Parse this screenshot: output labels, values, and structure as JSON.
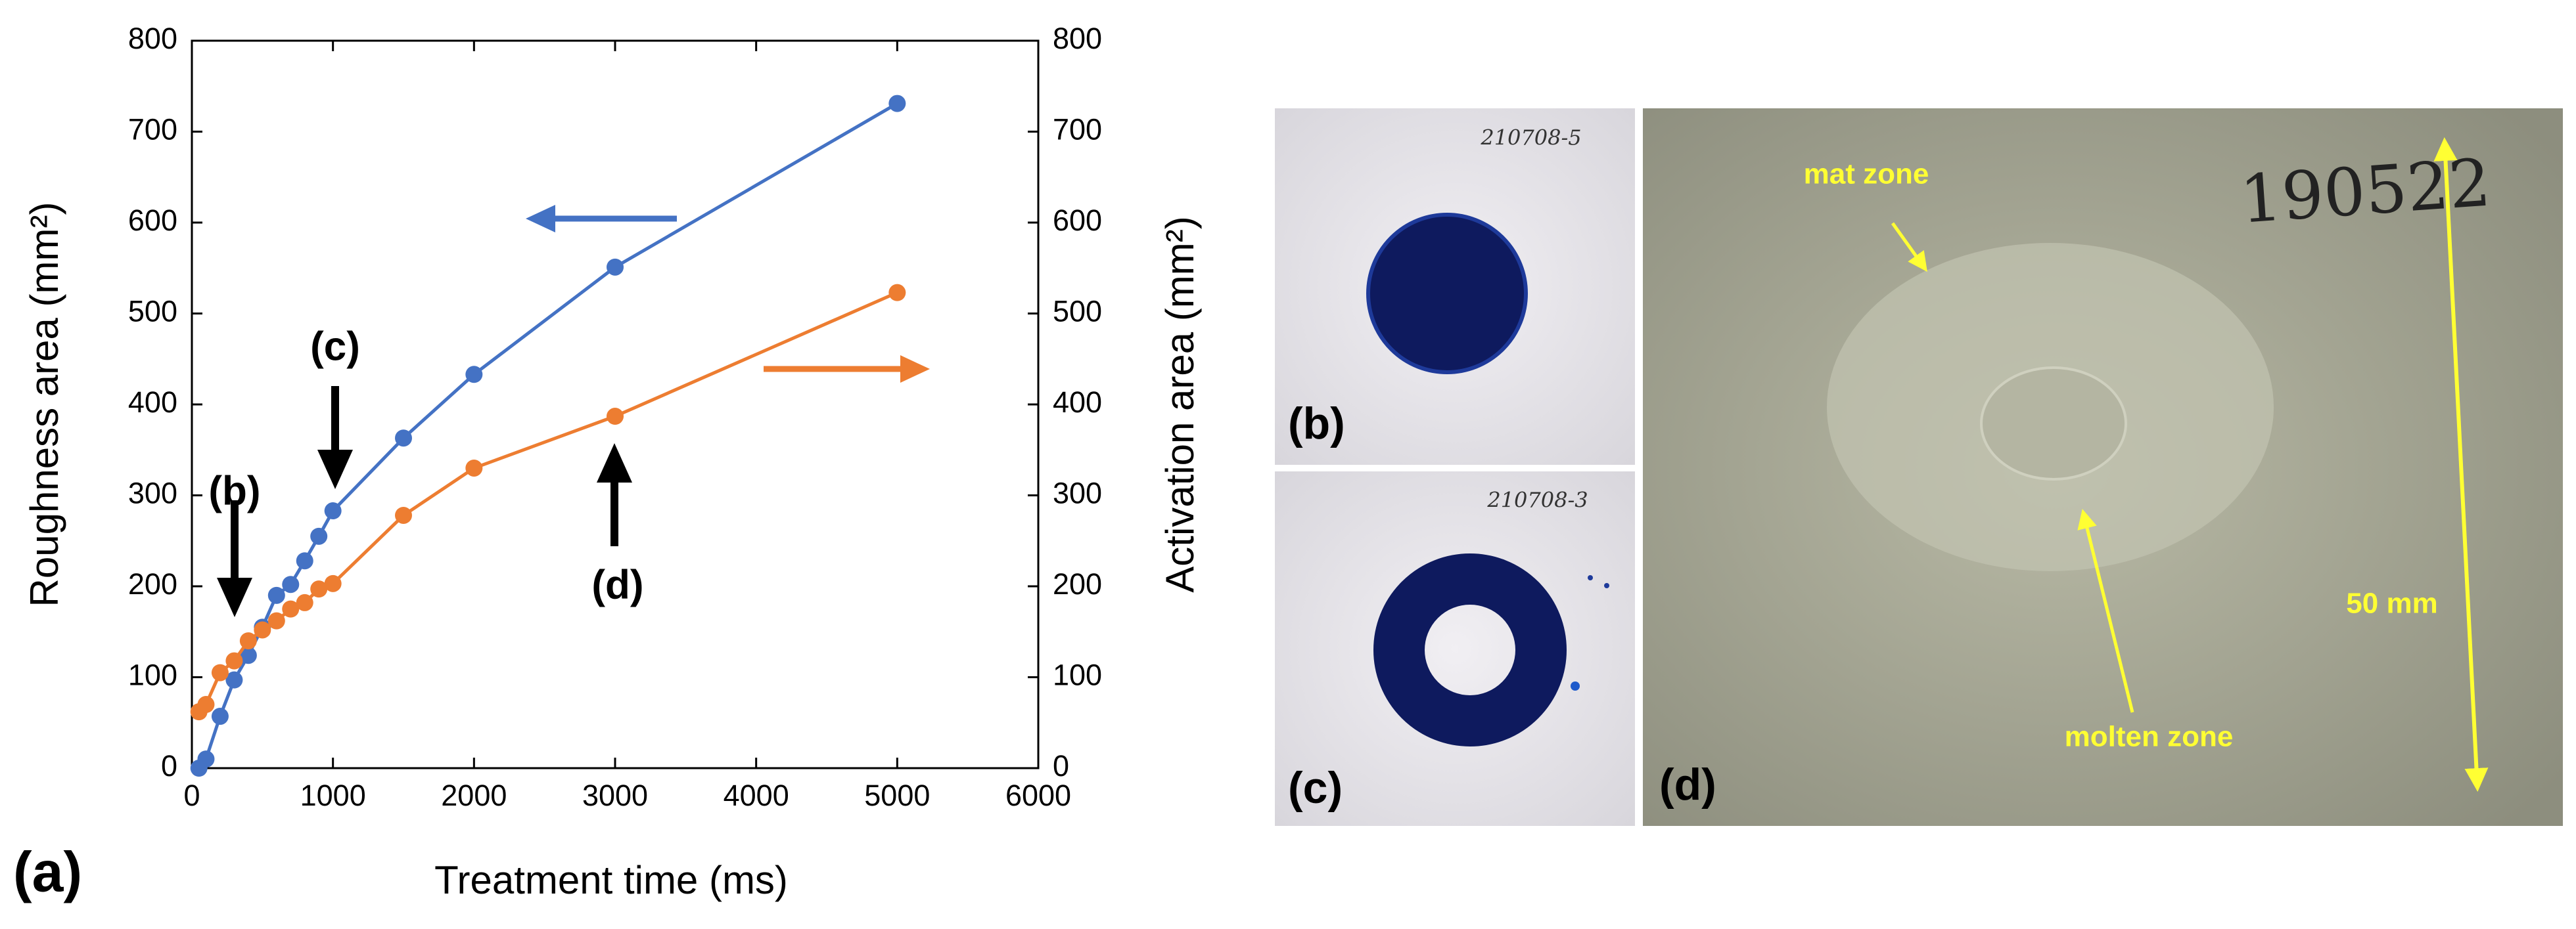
{
  "chart_data": {
    "type": "line",
    "panel_label": "(a)",
    "x_label": "Treatment time (ms)",
    "y_label": "Roughness area (mm²)",
    "y2_label": "Activation area (mm²)",
    "xlim": [
      0,
      6000
    ],
    "xticks": [
      0,
      1000,
      2000,
      3000,
      4000,
      5000,
      6000
    ],
    "ylim": [
      0,
      800
    ],
    "yticks": [
      0,
      100,
      200,
      300,
      400,
      500,
      600,
      700,
      800
    ],
    "y2lim": [
      0,
      800
    ],
    "y2ticks": [
      0,
      100,
      200,
      300,
      400,
      500,
      600,
      700,
      800
    ],
    "x": [
      50,
      100,
      200,
      300,
      400,
      500,
      600,
      700,
      800,
      900,
      1000,
      1500,
      2000,
      3000,
      5000
    ],
    "series": [
      {
        "color": "#4472c4",
        "values": [
          0,
          10,
          57,
          97,
          124,
          155,
          190,
          202,
          228,
          255,
          283,
          363,
          433,
          551,
          731
        ]
      },
      {
        "color": "#ed7d31",
        "axis": "y2",
        "values": [
          62,
          70,
          105,
          118,
          140,
          152,
          162,
          175,
          182,
          197,
          203,
          278,
          330,
          387,
          523
        ]
      }
    ],
    "annotations": [
      "(b)",
      "(c)",
      "(d)"
    ]
  },
  "photos": {
    "b": {
      "label": "(b)",
      "sample_id": "210708-5"
    },
    "c": {
      "label": "(c)",
      "sample_id": "210708-3"
    },
    "d": {
      "label": "(d)",
      "sample_id": "190522",
      "mat_zone": "mat zone",
      "molten_zone": "molten zone",
      "scale": "50 mm"
    }
  }
}
